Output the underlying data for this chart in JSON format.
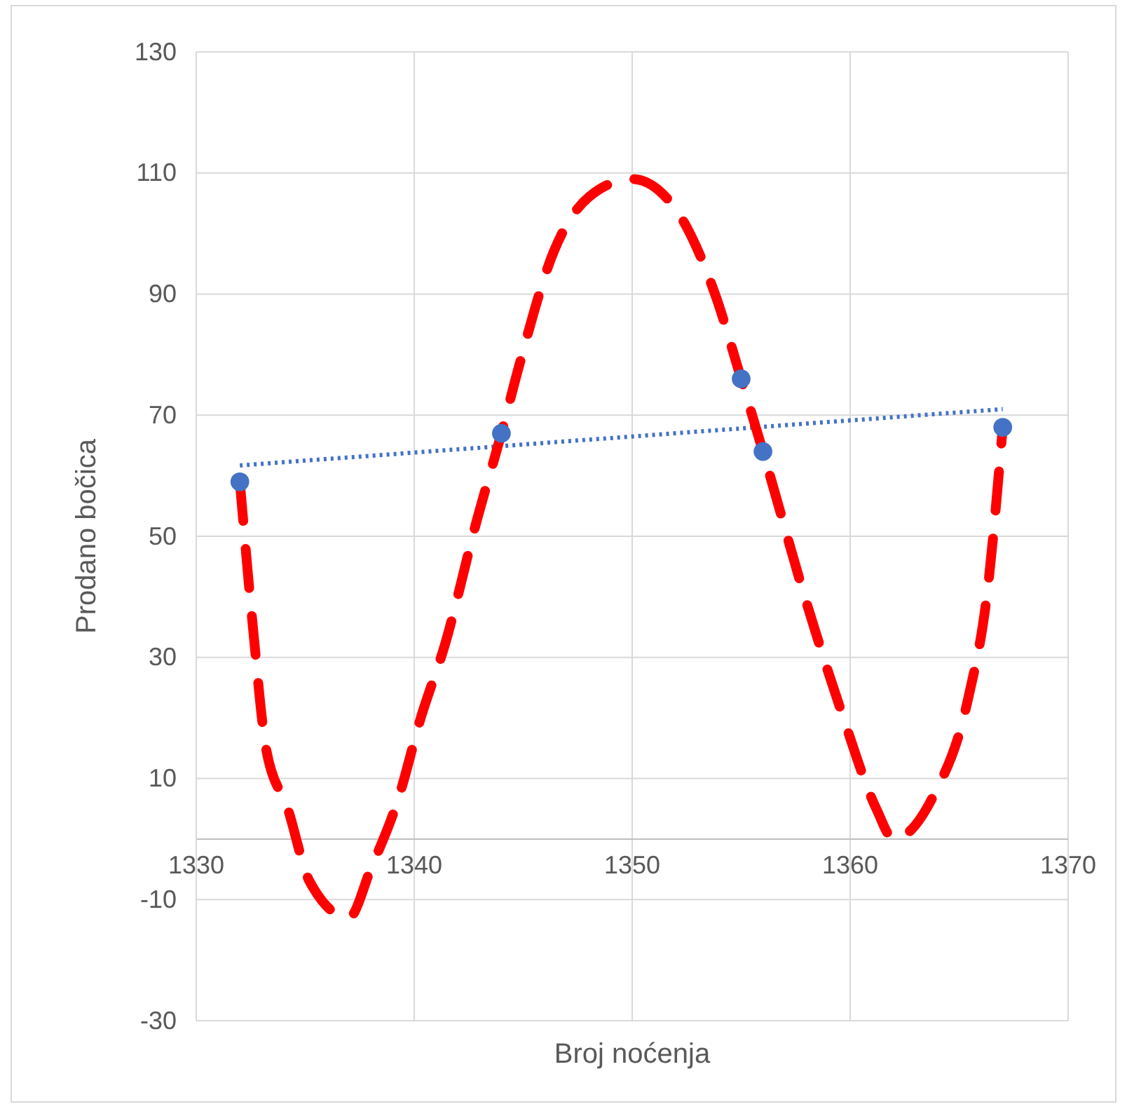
{
  "chart_data": {
    "type": "scatter",
    "xlabel": "Broj noćenja",
    "ylabel": "Prodano bočica",
    "xlim": [
      1330,
      1370
    ],
    "xticks": [
      1330,
      1340,
      1350,
      1360,
      1370
    ],
    "ylim": [
      -30,
      130
    ],
    "yticks": [
      -30,
      -10,
      10,
      30,
      50,
      70,
      90,
      110,
      130
    ],
    "grid": true,
    "series": [
      {
        "color": "#4472c4",
        "marker": "circle",
        "x": [
          1332,
          1344,
          1355,
          1356,
          1367
        ],
        "values": [
          59,
          67,
          76,
          64,
          68
        ]
      },
      {
        "type": "line",
        "color": "#4472c4",
        "line_style": "dotted",
        "marker": "none",
        "x": [
          1332,
          1367
        ],
        "values": [
          61.7,
          71
        ]
      },
      {
        "type": "line",
        "color": "#ff0000",
        "line_style": "dashed",
        "marker": "none",
        "x": [
          1332,
          1332.6,
          1333.2,
          1334.2,
          1335.2,
          1337,
          1338,
          1339.3,
          1340.3,
          1341.4,
          1342.9,
          1344,
          1344.8,
          1346.4,
          1348,
          1350,
          1352,
          1353.8,
          1355,
          1356,
          1358,
          1359.6,
          1361.2,
          1362,
          1363.8,
          1365.4,
          1366.3,
          1367
        ],
        "values": [
          59,
          35,
          15,
          5,
          -7,
          -13,
          -5,
          7,
          20,
          32,
          53,
          67,
          78,
          97,
          106,
          109,
          104,
          90,
          76,
          64,
          39,
          21,
          5,
          0,
          7,
          23,
          41,
          68
        ]
      }
    ]
  }
}
